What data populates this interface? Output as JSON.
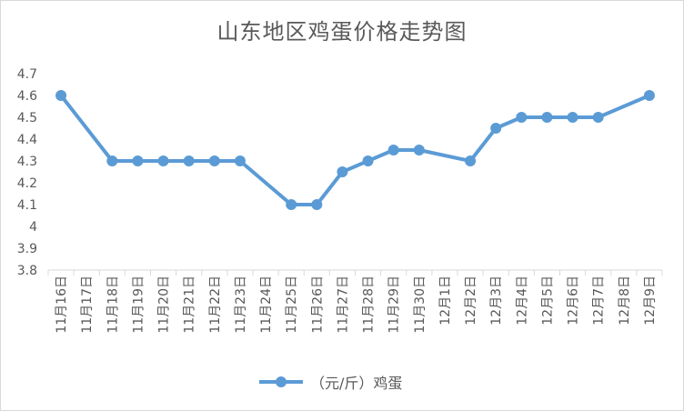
{
  "chart_data": {
    "type": "line",
    "title": "山东地区鸡蛋价格走势图",
    "categories": [
      "11月16日",
      "11月17日",
      "11月18日",
      "11月19日",
      "11月20日",
      "11月21日",
      "11月22日",
      "11月23日",
      "11月24日",
      "11月25日",
      "11月26日",
      "11月27日",
      "11月28日",
      "11月29日",
      "11月30日",
      "12月1日",
      "12月2日",
      "12月3日",
      "12月4日",
      "12月5日",
      "12月6日",
      "12月7日",
      "12月8日",
      "12月9日"
    ],
    "series": [
      {
        "name": "（元/斤）鸡蛋",
        "color": "#5b9bd5",
        "values": [
          4.6,
          null,
          4.3,
          4.3,
          4.3,
          4.3,
          4.3,
          4.3,
          null,
          4.1,
          4.1,
          4.25,
          4.3,
          4.35,
          4.35,
          null,
          4.3,
          4.45,
          4.5,
          4.5,
          4.5,
          4.5,
          null,
          4.6
        ]
      }
    ],
    "yticks": [
      "3.8",
      "3.9",
      "4",
      "4.1",
      "4.2",
      "4.3",
      "4.4",
      "4.5",
      "4.6",
      "4.7"
    ],
    "ylim": [
      3.8,
      4.7
    ],
    "grid": false,
    "legend_position": "bottom"
  }
}
